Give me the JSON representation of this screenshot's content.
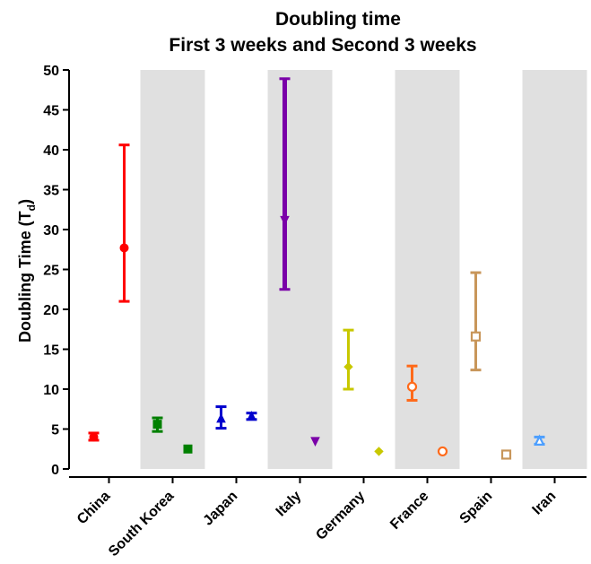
{
  "chart_data": {
    "type": "scatter",
    "title": "Doubling time",
    "subtitle": "First 3 weeks and Second 3 weeks",
    "ylabel_main": "Doubling Time (T",
    "ylabel_sub": "d",
    "ylabel_close": ")",
    "ylim": [
      0,
      50
    ],
    "yticks": [
      "0",
      "5",
      "10",
      "15",
      "20",
      "25",
      "30",
      "35",
      "40",
      "45",
      "50"
    ],
    "grid": false,
    "categories": [
      "China",
      "South Korea",
      "Japan",
      "Italy",
      "Germany",
      "France",
      "Spain",
      "Iran"
    ],
    "shaded_categories": [
      "South Korea",
      "Italy",
      "France",
      "Iran"
    ],
    "shade_color": "#e0e0e0",
    "countries": [
      {
        "name": "China",
        "color": "#ff0000",
        "marker": "circle-filled",
        "first": {
          "mean": 4.0,
          "low": 3.6,
          "high": 4.5
        },
        "second": {
          "mean": 27.7,
          "low": 21.0,
          "high": 40.6
        }
      },
      {
        "name": "South Korea",
        "color": "#008000",
        "marker": "square-filled",
        "first": {
          "mean": 5.6,
          "low": 4.7,
          "high": 6.4
        },
        "second": {
          "mean": 2.5,
          "low": 2.5,
          "high": 2.5
        }
      },
      {
        "name": "Japan",
        "color": "#0000cd",
        "marker": "triangle-up-filled",
        "first": {
          "mean": 6.3,
          "low": 5.1,
          "high": 7.8
        },
        "second": {
          "mean": 6.6,
          "low": 6.2,
          "high": 7.0
        }
      },
      {
        "name": "Italy",
        "color": "#7a00a8",
        "marker": "triangle-down-filled",
        "first": {
          "mean": 31.2,
          "low": 22.5,
          "high": 48.9
        },
        "second": {
          "mean": 3.5,
          "low": 3.5,
          "high": 3.5
        }
      },
      {
        "name": "Germany",
        "color": "#c8c800",
        "marker": "diamond-filled",
        "first": {
          "mean": 12.8,
          "low": 10.0,
          "high": 17.4
        },
        "second": {
          "mean": 2.2,
          "low": 2.2,
          "high": 2.2
        }
      },
      {
        "name": "France",
        "color": "#ff6a1a",
        "marker": "circle-open",
        "first": {
          "mean": 10.3,
          "low": 8.6,
          "high": 12.9
        },
        "second": {
          "mean": 2.2,
          "low": 2.2,
          "high": 2.2
        }
      },
      {
        "name": "Spain",
        "color": "#c8965a",
        "marker": "square-open",
        "first": {
          "mean": 16.6,
          "low": 12.4,
          "high": 24.6
        },
        "second": {
          "mean": 1.8,
          "low": 1.8,
          "high": 1.8
        }
      },
      {
        "name": "Iran",
        "color": "#4d9fff",
        "marker": "triangle-up-open",
        "first": {
          "mean": 3.5,
          "low": 3.1,
          "high": 4.0
        },
        "second": null
      }
    ]
  }
}
